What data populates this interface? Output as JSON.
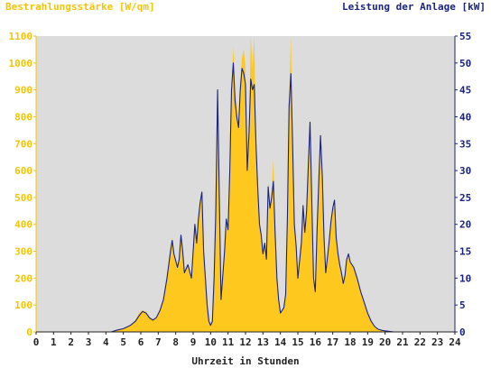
{
  "colors": {
    "irradiance": "#ffc81e",
    "power": "#1a237e",
    "plot_bg": "#dcdcdc",
    "left_axis_text": "#f5c400",
    "right_axis_text": "#1a237e"
  },
  "chart_data": {
    "type": "area",
    "title_left": "Bestrahlungsstärke [W/qm]",
    "title_right": "Leistung der Anlage [kW]",
    "xlabel": "Uhrzeit in Stunden",
    "xlim": [
      0,
      24
    ],
    "x_ticks": [
      "0",
      "1",
      "2",
      "3",
      "4",
      "5",
      "6",
      "7",
      "8",
      "9",
      "10",
      "11",
      "12",
      "13",
      "14",
      "15",
      "16",
      "17",
      "18",
      "19",
      "20",
      "21",
      "22",
      "23",
      "24"
    ],
    "y_left": {
      "label": "Bestrahlungsstärke [W/qm]",
      "lim": [
        0,
        1100
      ],
      "ticks": [
        "0",
        "100",
        "200",
        "300",
        "400",
        "500",
        "600",
        "700",
        "800",
        "900",
        "1000",
        "1100"
      ]
    },
    "y_right": {
      "label": "Leistung der Anlage [kW]",
      "lim": [
        0,
        55
      ],
      "ticks": [
        "0",
        "5",
        "10",
        "15",
        "20",
        "25",
        "30",
        "35",
        "40",
        "45",
        "50",
        "55"
      ]
    },
    "grid": false,
    "series": [
      {
        "name": "Bestrahlungsstärke [W/qm]",
        "axis": "left",
        "type": "area",
        "points": [
          [
            0,
            0
          ],
          [
            4.3,
            0
          ],
          [
            4.6,
            5
          ],
          [
            5,
            12
          ],
          [
            5.4,
            25
          ],
          [
            5.7,
            45
          ],
          [
            5.9,
            70
          ],
          [
            6.1,
            80
          ],
          [
            6.3,
            75
          ],
          [
            6.5,
            55
          ],
          [
            6.7,
            45
          ],
          [
            6.9,
            55
          ],
          [
            7.1,
            80
          ],
          [
            7.3,
            120
          ],
          [
            7.5,
            200
          ],
          [
            7.7,
            300
          ],
          [
            7.8,
            350
          ],
          [
            7.9,
            290
          ],
          [
            8.1,
            240
          ],
          [
            8.2,
            270
          ],
          [
            8.3,
            350
          ],
          [
            8.4,
            300
          ],
          [
            8.5,
            220
          ],
          [
            8.7,
            250
          ],
          [
            8.9,
            200
          ],
          [
            9.0,
            300
          ],
          [
            9.1,
            400
          ],
          [
            9.2,
            330
          ],
          [
            9.3,
            420
          ],
          [
            9.4,
            480
          ],
          [
            9.5,
            520
          ],
          [
            9.6,
            300
          ],
          [
            9.8,
            100
          ],
          [
            9.9,
            40
          ],
          [
            10.0,
            25
          ],
          [
            10.1,
            40
          ],
          [
            10.2,
            200
          ],
          [
            10.3,
            450
          ],
          [
            10.4,
            860
          ],
          [
            10.5,
            500
          ],
          [
            10.6,
            120
          ],
          [
            10.8,
            300
          ],
          [
            10.9,
            420
          ],
          [
            11.0,
            380
          ],
          [
            11.1,
            600
          ],
          [
            11.2,
            900
          ],
          [
            11.3,
            1060
          ],
          [
            11.4,
            900
          ],
          [
            11.5,
            850
          ],
          [
            11.6,
            760
          ],
          [
            11.7,
            900
          ],
          [
            11.8,
            1020
          ],
          [
            11.9,
            1050
          ],
          [
            12.0,
            980
          ],
          [
            12.1,
            600
          ],
          [
            12.2,
            750
          ],
          [
            12.3,
            1100
          ],
          [
            12.4,
            980
          ],
          [
            12.5,
            1100
          ],
          [
            12.6,
            700
          ],
          [
            12.7,
            550
          ],
          [
            12.8,
            400
          ],
          [
            12.9,
            360
          ],
          [
            13.0,
            290
          ],
          [
            13.1,
            330
          ],
          [
            13.2,
            270
          ],
          [
            13.3,
            560
          ],
          [
            13.4,
            470
          ],
          [
            13.5,
            520
          ],
          [
            13.6,
            640
          ],
          [
            13.7,
            360
          ],
          [
            13.8,
            200
          ],
          [
            13.9,
            120
          ],
          [
            14.0,
            70
          ],
          [
            14.2,
            90
          ],
          [
            14.3,
            140
          ],
          [
            14.4,
            420
          ],
          [
            14.5,
            870
          ],
          [
            14.6,
            1100
          ],
          [
            14.7,
            700
          ],
          [
            14.8,
            400
          ],
          [
            14.9,
            320
          ],
          [
            15.0,
            200
          ],
          [
            15.2,
            330
          ],
          [
            15.3,
            470
          ],
          [
            15.4,
            370
          ],
          [
            15.5,
            450
          ],
          [
            15.6,
            620
          ],
          [
            15.7,
            780
          ],
          [
            15.8,
            480
          ],
          [
            15.9,
            200
          ],
          [
            16.0,
            150
          ],
          [
            16.1,
            380
          ],
          [
            16.2,
            560
          ],
          [
            16.3,
            730
          ],
          [
            16.4,
            580
          ],
          [
            16.5,
            350
          ],
          [
            16.6,
            220
          ],
          [
            16.7,
            280
          ],
          [
            16.8,
            340
          ],
          [
            16.9,
            410
          ],
          [
            17.0,
            460
          ],
          [
            17.1,
            460
          ],
          [
            17.2,
            350
          ],
          [
            17.3,
            290
          ],
          [
            17.4,
            250
          ],
          [
            17.5,
            220
          ],
          [
            17.6,
            180
          ],
          [
            17.7,
            210
          ],
          [
            17.8,
            270
          ],
          [
            17.9,
            290
          ],
          [
            18.0,
            260
          ],
          [
            18.2,
            240
          ],
          [
            18.4,
            200
          ],
          [
            18.6,
            150
          ],
          [
            18.8,
            110
          ],
          [
            19.0,
            70
          ],
          [
            19.2,
            40
          ],
          [
            19.4,
            20
          ],
          [
            19.6,
            10
          ],
          [
            19.8,
            5
          ],
          [
            20.0,
            3
          ],
          [
            20.5,
            0
          ],
          [
            24,
            0
          ]
        ]
      },
      {
        "name": "Leistung der Anlage [kW]",
        "axis": "right",
        "type": "line",
        "points": [
          [
            0,
            0
          ],
          [
            4.3,
            0
          ],
          [
            4.6,
            0.3
          ],
          [
            5,
            0.6
          ],
          [
            5.4,
            1.2
          ],
          [
            5.7,
            2.0
          ],
          [
            5.9,
            3.0
          ],
          [
            6.1,
            3.8
          ],
          [
            6.3,
            3.5
          ],
          [
            6.5,
            2.6
          ],
          [
            6.7,
            2.2
          ],
          [
            6.9,
            2.7
          ],
          [
            7.1,
            4.0
          ],
          [
            7.3,
            6.0
          ],
          [
            7.5,
            10
          ],
          [
            7.7,
            15
          ],
          [
            7.8,
            17
          ],
          [
            7.9,
            14.5
          ],
          [
            8.1,
            12
          ],
          [
            8.2,
            13.5
          ],
          [
            8.3,
            18
          ],
          [
            8.4,
            15
          ],
          [
            8.5,
            11
          ],
          [
            8.7,
            12.5
          ],
          [
            8.9,
            10
          ],
          [
            9.0,
            15
          ],
          [
            9.1,
            20
          ],
          [
            9.2,
            16.5
          ],
          [
            9.3,
            21
          ],
          [
            9.4,
            24
          ],
          [
            9.5,
            26
          ],
          [
            9.6,
            15
          ],
          [
            9.8,
            5
          ],
          [
            9.9,
            2
          ],
          [
            10.0,
            1.2
          ],
          [
            10.1,
            2
          ],
          [
            10.2,
            10
          ],
          [
            10.3,
            22.5
          ],
          [
            10.4,
            45
          ],
          [
            10.5,
            25
          ],
          [
            10.6,
            6
          ],
          [
            10.8,
            15
          ],
          [
            10.9,
            21
          ],
          [
            11.0,
            19
          ],
          [
            11.1,
            30
          ],
          [
            11.2,
            45
          ],
          [
            11.3,
            50
          ],
          [
            11.4,
            43
          ],
          [
            11.5,
            40
          ],
          [
            11.6,
            38
          ],
          [
            11.7,
            45
          ],
          [
            11.8,
            49
          ],
          [
            11.9,
            48
          ],
          [
            12.0,
            46
          ],
          [
            12.1,
            30
          ],
          [
            12.2,
            37
          ],
          [
            12.3,
            47
          ],
          [
            12.4,
            45
          ],
          [
            12.5,
            46
          ],
          [
            12.6,
            35
          ],
          [
            12.7,
            27
          ],
          [
            12.8,
            20
          ],
          [
            12.9,
            18
          ],
          [
            13.0,
            14.5
          ],
          [
            13.1,
            16.5
          ],
          [
            13.2,
            13.5
          ],
          [
            13.3,
            27
          ],
          [
            13.4,
            23
          ],
          [
            13.5,
            25
          ],
          [
            13.6,
            28
          ],
          [
            13.7,
            18
          ],
          [
            13.8,
            10
          ],
          [
            13.9,
            6
          ],
          [
            14.0,
            3.5
          ],
          [
            14.2,
            4.5
          ],
          [
            14.3,
            7
          ],
          [
            14.4,
            21
          ],
          [
            14.5,
            42
          ],
          [
            14.6,
            48
          ],
          [
            14.7,
            35
          ],
          [
            14.8,
            20
          ],
          [
            14.9,
            16
          ],
          [
            15.0,
            10
          ],
          [
            15.2,
            16.5
          ],
          [
            15.3,
            23.5
          ],
          [
            15.4,
            18.5
          ],
          [
            15.5,
            22.5
          ],
          [
            15.6,
            31
          ],
          [
            15.7,
            39
          ],
          [
            15.8,
            24
          ],
          [
            15.9,
            10
          ],
          [
            16.0,
            7.5
          ],
          [
            16.1,
            19
          ],
          [
            16.2,
            28
          ],
          [
            16.3,
            36.5
          ],
          [
            16.4,
            29
          ],
          [
            16.5,
            17.5
          ],
          [
            16.6,
            11
          ],
          [
            16.7,
            14
          ],
          [
            16.8,
            17
          ],
          [
            16.9,
            20.5
          ],
          [
            17.0,
            23
          ],
          [
            17.1,
            24.5
          ],
          [
            17.2,
            17.5
          ],
          [
            17.3,
            14.5
          ],
          [
            17.4,
            12.5
          ],
          [
            17.5,
            11
          ],
          [
            17.6,
            9
          ],
          [
            17.7,
            10.5
          ],
          [
            17.8,
            13.5
          ],
          [
            17.9,
            14.5
          ],
          [
            18.0,
            13
          ],
          [
            18.2,
            12
          ],
          [
            18.4,
            10
          ],
          [
            18.6,
            7.5
          ],
          [
            18.8,
            5.5
          ],
          [
            19.0,
            3.5
          ],
          [
            19.2,
            2
          ],
          [
            19.4,
            1
          ],
          [
            19.6,
            0.5
          ],
          [
            19.8,
            0.3
          ],
          [
            20.0,
            0.2
          ],
          [
            20.5,
            0
          ],
          [
            24,
            0
          ]
        ]
      }
    ]
  }
}
